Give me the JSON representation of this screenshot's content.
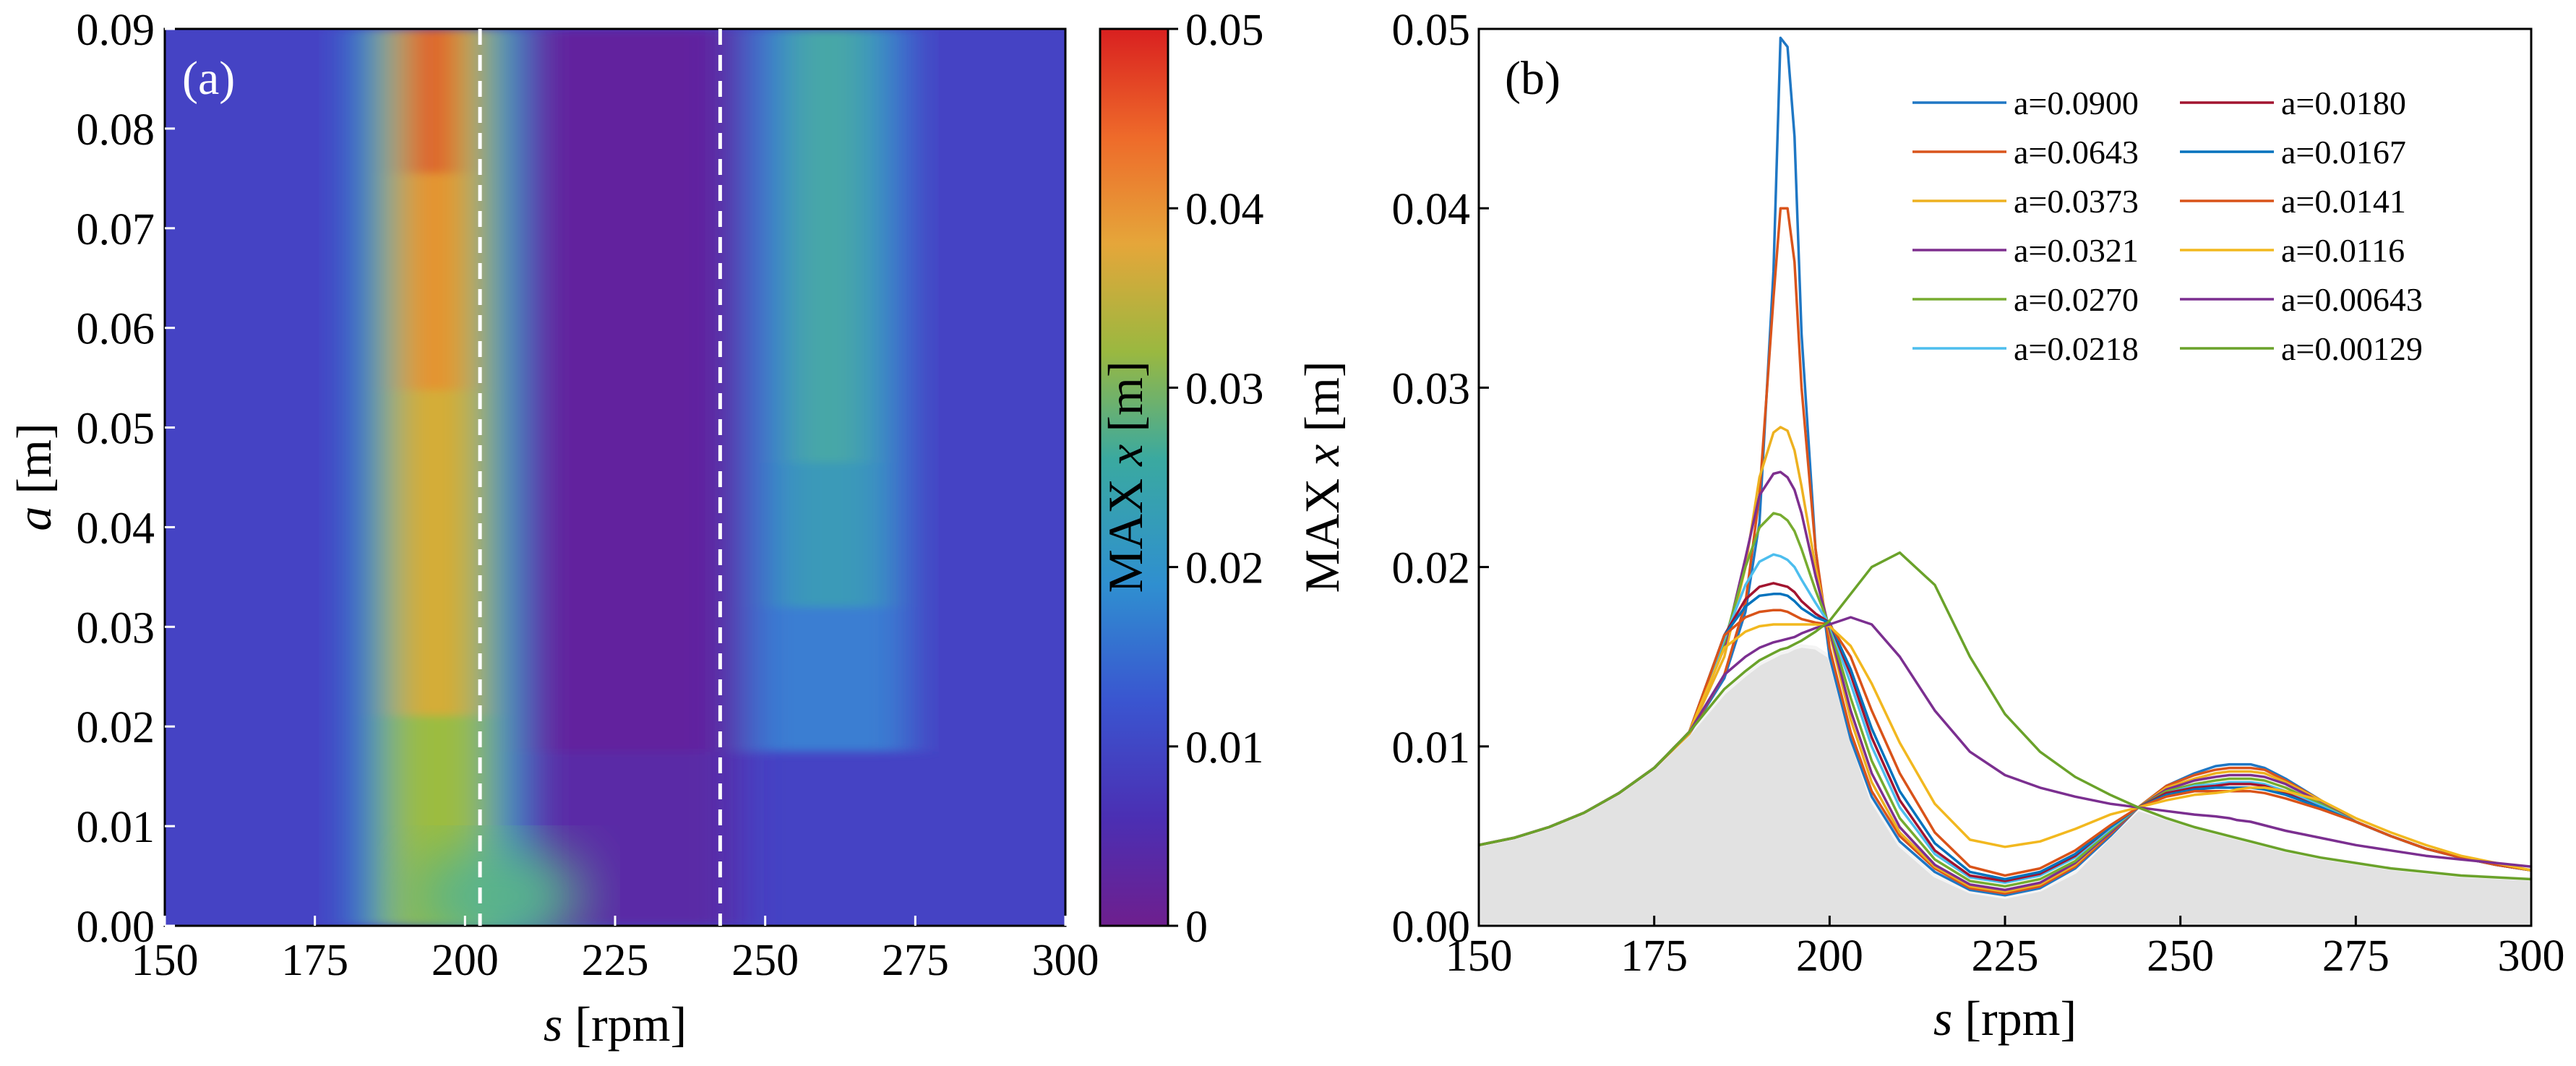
{
  "chart_data": [
    {
      "type": "heatmap",
      "panel_label": "(a)",
      "xlabel_var": "s",
      "xlabel_unit": " [rpm]",
      "ylabel_var": "a",
      "ylabel_unit": " [m]",
      "xlim": [
        150,
        300
      ],
      "ylim": [
        0,
        0.09
      ],
      "x_ticks": [
        "150",
        "175",
        "200",
        "225",
        "250",
        "275",
        "300"
      ],
      "y_ticks": [
        "0.00",
        "0.01",
        "0.02",
        "0.03",
        "0.04",
        "0.05",
        "0.06",
        "0.07",
        "0.08",
        "0.09"
      ],
      "dashed_lines_x": [
        202.5,
        242.5
      ],
      "colorbar": {
        "label_prefix": "MAX ",
        "label_var": "x",
        "label_unit": " [m]",
        "range": [
          0,
          0.05
        ],
        "ticks": [
          "0",
          "0.01",
          "0.02",
          "0.03",
          "0.04",
          "0.05"
        ]
      }
    },
    {
      "type": "line",
      "panel_label": "(b)",
      "xlabel_var": "s",
      "xlabel_unit": " [rpm]",
      "ylabel_prefix": "MAX ",
      "ylabel_var": "x",
      "ylabel_unit": " [m]",
      "xlim": [
        150,
        300
      ],
      "ylim": [
        0,
        0.05
      ],
      "x_ticks": [
        "150",
        "175",
        "200",
        "225",
        "250",
        "275",
        "300"
      ],
      "y_ticks": [
        "0.00",
        "0.01",
        "0.02",
        "0.03",
        "0.04",
        "0.05"
      ],
      "x": [
        150,
        155,
        160,
        165,
        170,
        175,
        180,
        185,
        188,
        190,
        192,
        193,
        194,
        195,
        196,
        198,
        200,
        203,
        206,
        210,
        215,
        220,
        225,
        230,
        235,
        240,
        244,
        248,
        252,
        255,
        257,
        258,
        260,
        262,
        265,
        270,
        275,
        280,
        285,
        290,
        295,
        300
      ],
      "series": [
        {
          "name": "a=0.0900",
          "color": "#1f77c4",
          "values": [
            0.0045,
            0.0049,
            0.0055,
            0.0063,
            0.0074,
            0.0088,
            0.0107,
            0.0138,
            0.0175,
            0.0225,
            0.0365,
            0.0495,
            0.049,
            0.044,
            0.033,
            0.021,
            0.015,
            0.0104,
            0.0072,
            0.0047,
            0.003,
            0.002,
            0.0017,
            0.0021,
            0.0032,
            0.005,
            0.0066,
            0.0078,
            0.0085,
            0.0089,
            0.009,
            0.009,
            0.009,
            0.0088,
            0.0082,
            0.007,
            0.0058,
            0.005,
            0.0043,
            0.0038,
            0.0034,
            0.0031
          ]
        },
        {
          "name": "a=0.0643",
          "color": "#d9541c",
          "values": [
            0.0045,
            0.0049,
            0.0055,
            0.0063,
            0.0074,
            0.0088,
            0.0107,
            0.014,
            0.018,
            0.024,
            0.035,
            0.04,
            0.04,
            0.037,
            0.03,
            0.021,
            0.0155,
            0.0108,
            0.0075,
            0.005,
            0.0032,
            0.0021,
            0.0018,
            0.0022,
            0.0033,
            0.0051,
            0.0066,
            0.0078,
            0.0084,
            0.0087,
            0.0088,
            0.0088,
            0.0088,
            0.0087,
            0.0081,
            0.007,
            0.0058,
            0.005,
            0.0043,
            0.0038,
            0.0034,
            0.0031
          ]
        },
        {
          "name": "a=0.0373",
          "color": "#edb120",
          "values": [
            0.0045,
            0.0049,
            0.0055,
            0.0063,
            0.0074,
            0.0088,
            0.0107,
            0.015,
            0.02,
            0.025,
            0.0275,
            0.0278,
            0.0276,
            0.0265,
            0.0245,
            0.02,
            0.0163,
            0.0115,
            0.008,
            0.0052,
            0.0033,
            0.0022,
            0.0019,
            0.0023,
            0.0034,
            0.0052,
            0.0066,
            0.0077,
            0.0082,
            0.0085,
            0.0086,
            0.0086,
            0.0086,
            0.0085,
            0.008,
            0.007,
            0.0058,
            0.005,
            0.0043,
            0.0038,
            0.0034,
            0.0031
          ]
        },
        {
          "name": "a=0.0321",
          "color": "#7e2f8e",
          "values": [
            0.0045,
            0.0049,
            0.0055,
            0.0063,
            0.0074,
            0.0088,
            0.0108,
            0.0155,
            0.0205,
            0.024,
            0.0252,
            0.0253,
            0.025,
            0.0243,
            0.023,
            0.0195,
            0.0165,
            0.012,
            0.0085,
            0.0055,
            0.0034,
            0.0023,
            0.002,
            0.0024,
            0.0035,
            0.0052,
            0.0066,
            0.0076,
            0.0081,
            0.0083,
            0.0084,
            0.0084,
            0.0084,
            0.0083,
            0.0079,
            0.0069,
            0.0058,
            0.005,
            0.0043,
            0.0038,
            0.0034,
            0.0031
          ]
        },
        {
          "name": "a=0.0270",
          "color": "#77ac30",
          "values": [
            0.0045,
            0.0049,
            0.0055,
            0.0063,
            0.0074,
            0.0088,
            0.0108,
            0.0158,
            0.02,
            0.0222,
            0.023,
            0.0229,
            0.0226,
            0.022,
            0.021,
            0.0187,
            0.0167,
            0.0127,
            0.0092,
            0.006,
            0.0037,
            0.0025,
            0.0022,
            0.0026,
            0.0036,
            0.0053,
            0.0066,
            0.0075,
            0.0079,
            0.0081,
            0.0082,
            0.0082,
            0.0082,
            0.0081,
            0.0077,
            0.0068,
            0.0058,
            0.005,
            0.0043,
            0.0038,
            0.0034,
            0.0031
          ]
        },
        {
          "name": "a=0.0218",
          "color": "#4dbeee",
          "values": [
            0.0045,
            0.0049,
            0.0055,
            0.0063,
            0.0074,
            0.0088,
            0.0108,
            0.016,
            0.019,
            0.0203,
            0.0207,
            0.0206,
            0.0204,
            0.02,
            0.0193,
            0.018,
            0.0168,
            0.0135,
            0.01,
            0.0066,
            0.004,
            0.0027,
            0.0024,
            0.0028,
            0.0038,
            0.0054,
            0.0066,
            0.0074,
            0.0078,
            0.0079,
            0.008,
            0.008,
            0.008,
            0.0079,
            0.0075,
            0.0067,
            0.0058,
            0.005,
            0.0043,
            0.0038,
            0.0034,
            0.0031
          ]
        },
        {
          "name": "a=0.0180",
          "color": "#a2142f",
          "values": [
            0.0045,
            0.0049,
            0.0055,
            0.0063,
            0.0074,
            0.0088,
            0.0108,
            0.0162,
            0.0182,
            0.0189,
            0.0191,
            0.019,
            0.0189,
            0.0186,
            0.0181,
            0.0174,
            0.0169,
            0.014,
            0.0105,
            0.007,
            0.0042,
            0.0028,
            0.0025,
            0.0029,
            0.0039,
            0.0055,
            0.0066,
            0.0074,
            0.0077,
            0.0078,
            0.0079,
            0.0079,
            0.0079,
            0.0078,
            0.0074,
            0.0066,
            0.0058,
            0.005,
            0.0043,
            0.0038,
            0.0034,
            0.0031
          ]
        },
        {
          "name": "a=0.0167",
          "color": "#0072bd",
          "values": [
            0.0045,
            0.0049,
            0.0055,
            0.0063,
            0.0074,
            0.0088,
            0.0108,
            0.0162,
            0.0178,
            0.0184,
            0.0185,
            0.0185,
            0.0184,
            0.0181,
            0.0177,
            0.0172,
            0.0169,
            0.0143,
            0.011,
            0.0075,
            0.0046,
            0.003,
            0.0026,
            0.003,
            0.004,
            0.0055,
            0.0066,
            0.0073,
            0.0076,
            0.0077,
            0.0077,
            0.0077,
            0.0077,
            0.0076,
            0.0073,
            0.0066,
            0.0058,
            0.005,
            0.0043,
            0.0038,
            0.0034,
            0.0031
          ]
        },
        {
          "name": "a=0.0141",
          "color": "#d95319",
          "values": [
            0.0045,
            0.0049,
            0.0055,
            0.0063,
            0.0074,
            0.0088,
            0.0108,
            0.0162,
            0.0172,
            0.0175,
            0.0176,
            0.0176,
            0.0175,
            0.0173,
            0.0171,
            0.0169,
            0.0168,
            0.015,
            0.012,
            0.0085,
            0.0052,
            0.0033,
            0.0028,
            0.0032,
            0.0042,
            0.0056,
            0.0066,
            0.0072,
            0.0075,
            0.0075,
            0.0075,
            0.0075,
            0.0075,
            0.0074,
            0.0071,
            0.0065,
            0.0058,
            0.005,
            0.0043,
            0.0038,
            0.0034,
            0.0031
          ]
        },
        {
          "name": "a=0.0116",
          "color": "#f2b81f",
          "values": [
            0.0045,
            0.0049,
            0.0055,
            0.0063,
            0.0074,
            0.0088,
            0.0108,
            0.0155,
            0.0164,
            0.0167,
            0.0168,
            0.0168,
            0.0168,
            0.0168,
            0.0168,
            0.0168,
            0.0167,
            0.0156,
            0.0135,
            0.0102,
            0.0068,
            0.0048,
            0.0044,
            0.0047,
            0.0054,
            0.0062,
            0.0066,
            0.007,
            0.0073,
            0.0074,
            0.0075,
            0.0076,
            0.0077,
            0.0077,
            0.0075,
            0.007,
            0.006,
            0.0052,
            0.0045,
            0.0039,
            0.0035,
            0.0031
          ]
        },
        {
          "name": "a=0.00643",
          "color": "#7b2f90",
          "values": [
            0.0045,
            0.0049,
            0.0055,
            0.0063,
            0.0074,
            0.0088,
            0.0108,
            0.014,
            0.015,
            0.0155,
            0.0158,
            0.0159,
            0.016,
            0.0161,
            0.0163,
            0.0166,
            0.0168,
            0.0172,
            0.0168,
            0.015,
            0.012,
            0.0097,
            0.0084,
            0.0077,
            0.0072,
            0.0068,
            0.0066,
            0.0064,
            0.0062,
            0.0061,
            0.006,
            0.0059,
            0.0058,
            0.0056,
            0.0053,
            0.0049,
            0.0045,
            0.0042,
            0.0039,
            0.0037,
            0.0035,
            0.0033
          ]
        },
        {
          "name": "a=0.00129",
          "color": "#6aa22a",
          "values": [
            0.0045,
            0.0049,
            0.0055,
            0.0063,
            0.0074,
            0.0088,
            0.0108,
            0.0132,
            0.0142,
            0.0148,
            0.0152,
            0.0154,
            0.0155,
            0.0157,
            0.0159,
            0.0164,
            0.017,
            0.0185,
            0.02,
            0.0208,
            0.019,
            0.015,
            0.0118,
            0.0097,
            0.0083,
            0.0073,
            0.0066,
            0.006,
            0.0055,
            0.0052,
            0.005,
            0.0049,
            0.0047,
            0.0045,
            0.0042,
            0.0038,
            0.0035,
            0.0032,
            0.003,
            0.0028,
            0.0027,
            0.0026
          ]
        }
      ],
      "envelope": [
        0.0045,
        0.0049,
        0.0055,
        0.0063,
        0.0074,
        0.0088,
        0.0107,
        0.013,
        0.014,
        0.0146,
        0.015,
        0.0152,
        0.0153,
        0.0155,
        0.0156,
        0.0155,
        0.015,
        0.0105,
        0.007,
        0.0045,
        0.0028,
        0.0019,
        0.0016,
        0.002,
        0.003,
        0.005,
        0.0065,
        0.006,
        0.0055,
        0.0052,
        0.005,
        0.0049,
        0.0047,
        0.0045,
        0.0042,
        0.0038,
        0.0035,
        0.0032,
        0.003,
        0.0028,
        0.0027,
        0.0026
      ]
    }
  ]
}
